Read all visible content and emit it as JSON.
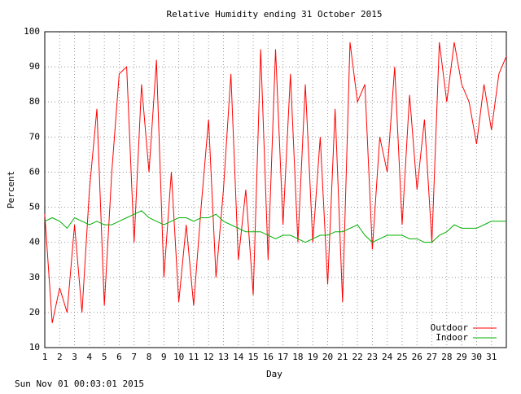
{
  "chart_data": {
    "type": "line",
    "title": "Relative Humidity ending 31 October 2015",
    "x_label": "Day",
    "y_label": "Percent",
    "footer": "Sun Nov 01 00:03:01 2015",
    "x": [
      1,
      1.5,
      2,
      2.5,
      3,
      3.5,
      4,
      4.5,
      5,
      5.5,
      6,
      6.5,
      7,
      7.5,
      8,
      8.5,
      9,
      9.5,
      10,
      10.5,
      11,
      11.5,
      12,
      12.5,
      13,
      13.5,
      14,
      14.5,
      15,
      15.5,
      16,
      16.5,
      17,
      17.5,
      18,
      18.5,
      19,
      19.5,
      20,
      20.5,
      21,
      21.5,
      22,
      22.5,
      23,
      23.5,
      24,
      24.5,
      25,
      25.5,
      26,
      26.5,
      27,
      27.5,
      28,
      28.5,
      29,
      29.5,
      30,
      30.5,
      31,
      31.5,
      32
    ],
    "series": [
      {
        "name": "Outdoor",
        "color": "#ff0000",
        "values": [
          48,
          17,
          27,
          20,
          45,
          20,
          55,
          78,
          22,
          60,
          88,
          90,
          40,
          85,
          60,
          92,
          30,
          60,
          23,
          45,
          22,
          50,
          75,
          30,
          55,
          88,
          35,
          55,
          25,
          95,
          35,
          95,
          45,
          88,
          40,
          85,
          40,
          70,
          28,
          78,
          23,
          97,
          80,
          85,
          38,
          70,
          60,
          90,
          45,
          82,
          55,
          75,
          40,
          97,
          80,
          97,
          85,
          80,
          68,
          85,
          72,
          88,
          93
        ]
      },
      {
        "name": "Indoor",
        "color": "#00b000",
        "values": [
          46,
          47,
          46,
          44,
          47,
          46,
          45,
          46,
          45,
          45,
          46,
          47,
          48,
          49,
          47,
          46,
          45,
          46,
          47,
          47,
          46,
          47,
          47,
          48,
          46,
          45,
          44,
          43,
          43,
          43,
          42,
          41,
          42,
          42,
          41,
          40,
          41,
          42,
          42,
          43,
          43,
          44,
          45,
          42,
          40,
          41,
          42,
          42,
          42,
          41,
          41,
          40,
          40,
          42,
          43,
          45,
          44,
          44,
          44,
          45,
          46,
          46,
          46
        ]
      }
    ],
    "xlim": [
      1,
      32
    ],
    "ylim": [
      10,
      100
    ],
    "xticks": [
      1,
      2,
      3,
      4,
      5,
      6,
      7,
      8,
      9,
      10,
      11,
      12,
      13,
      14,
      15,
      16,
      17,
      18,
      19,
      20,
      21,
      22,
      23,
      24,
      25,
      26,
      27,
      28,
      29,
      30,
      31
    ],
    "yticks": [
      10,
      20,
      30,
      40,
      50,
      60,
      70,
      80,
      90,
      100
    ],
    "grid": true,
    "legend": "bottom-right"
  }
}
